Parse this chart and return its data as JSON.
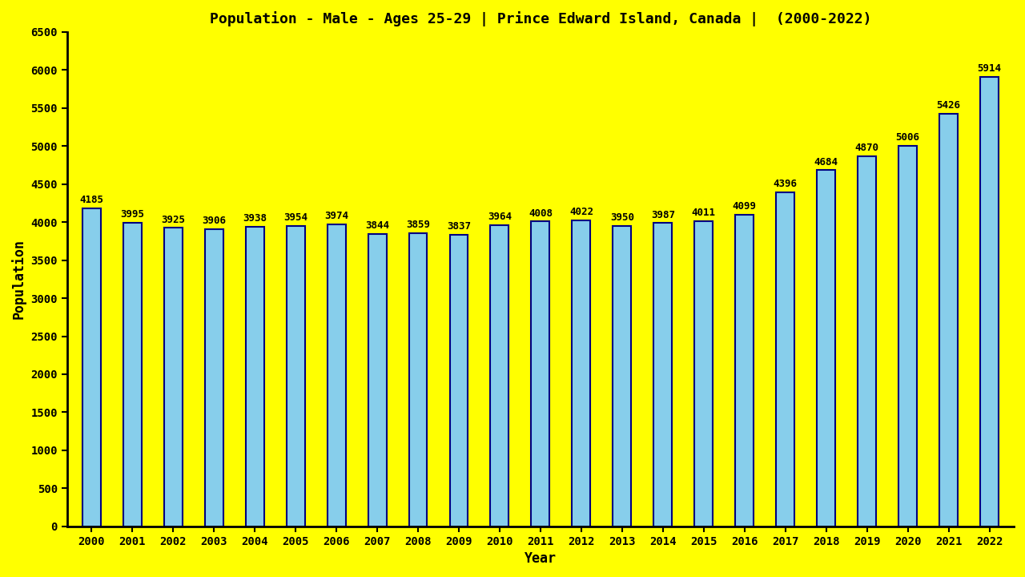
{
  "title": "Population - Male - Ages 25-29 | Prince Edward Island, Canada |  (2000-2022)",
  "xlabel": "Year",
  "ylabel": "Population",
  "background_color": "#ffff00",
  "bar_color": "#87ceeb",
  "bar_edge_color": "#000080",
  "years": [
    2000,
    2001,
    2002,
    2003,
    2004,
    2005,
    2006,
    2007,
    2008,
    2009,
    2010,
    2011,
    2012,
    2013,
    2014,
    2015,
    2016,
    2017,
    2018,
    2019,
    2020,
    2021,
    2022
  ],
  "values": [
    4185,
    3995,
    3925,
    3906,
    3938,
    3954,
    3974,
    3844,
    3859,
    3837,
    3964,
    4008,
    4022,
    3950,
    3987,
    4011,
    4099,
    4396,
    4684,
    4870,
    5006,
    5426,
    5914
  ],
  "ylim": [
    0,
    6500
  ],
  "yticks": [
    0,
    500,
    1000,
    1500,
    2000,
    2500,
    3000,
    3500,
    4000,
    4500,
    5000,
    5500,
    6000,
    6500
  ],
  "title_fontsize": 13,
  "axis_label_fontsize": 12,
  "tick_fontsize": 10,
  "value_label_fontsize": 9,
  "bar_width": 0.45
}
